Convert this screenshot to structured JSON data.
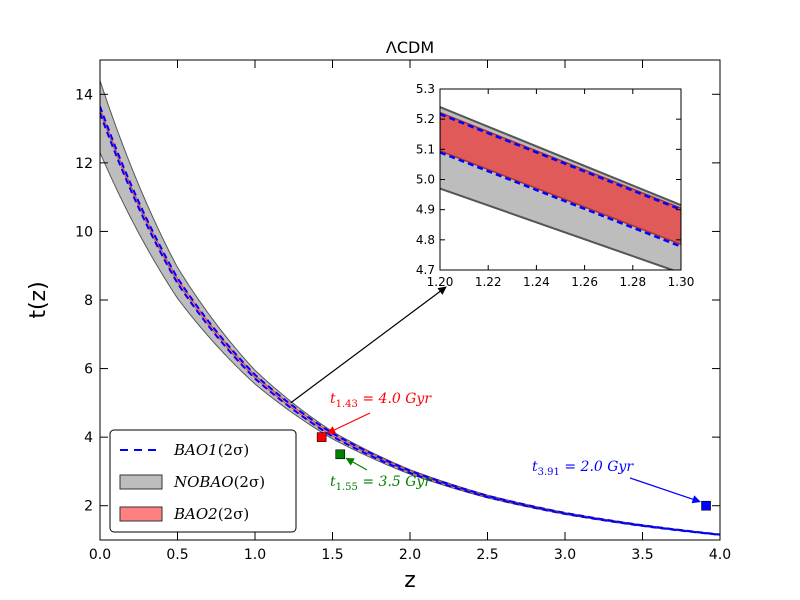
{
  "chart_data": {
    "type": "line",
    "title": "ΛCDM",
    "xlabel": "z",
    "ylabel": "t(z)",
    "xlim": [
      0,
      4
    ],
    "ylim": [
      1,
      15
    ],
    "xticks": [
      "0.0",
      "0.5",
      "1.0",
      "1.5",
      "2.0",
      "2.5",
      "3.0",
      "3.5",
      "4.0"
    ],
    "yticks": [
      "2",
      "4",
      "6",
      "8",
      "10",
      "12",
      "14"
    ],
    "series": [
      {
        "name": "BAO1(2σ)",
        "style": "dashed",
        "color": "#0000ff",
        "upper": [
          [
            0,
            13.65
          ],
          [
            0.5,
            8.64
          ],
          [
            1.0,
            5.82
          ],
          [
            1.5,
            4.11
          ],
          [
            2.0,
            3.02
          ],
          [
            2.5,
            2.29
          ],
          [
            3.0,
            1.79
          ],
          [
            3.5,
            1.43
          ],
          [
            4.0,
            1.16
          ]
        ],
        "lower": [
          [
            0,
            13.45
          ],
          [
            0.5,
            8.49
          ],
          [
            1.0,
            5.71
          ],
          [
            1.5,
            4.02
          ],
          [
            2.0,
            2.96
          ],
          [
            2.5,
            2.25
          ],
          [
            3.0,
            1.76
          ],
          [
            3.5,
            1.41
          ],
          [
            4.0,
            1.15
          ]
        ]
      },
      {
        "name": "NOBAO(2σ)",
        "style": "band",
        "color": "#bdbdbd",
        "upper": [
          [
            0,
            14.4
          ],
          [
            0.5,
            8.95
          ],
          [
            1.0,
            5.95
          ],
          [
            1.5,
            4.16
          ],
          [
            2.0,
            3.05
          ],
          [
            2.5,
            2.31
          ],
          [
            3.0,
            1.8
          ],
          [
            3.5,
            1.44
          ],
          [
            4.0,
            1.17
          ]
        ],
        "lower": [
          [
            0,
            12.3
          ],
          [
            0.5,
            8.05
          ],
          [
            1.0,
            5.55
          ],
          [
            1.5,
            3.95
          ],
          [
            2.0,
            2.92
          ],
          [
            2.5,
            2.23
          ],
          [
            3.0,
            1.75
          ],
          [
            3.5,
            1.4
          ],
          [
            4.0,
            1.14
          ]
        ]
      },
      {
        "name": "BAO2(2σ)",
        "style": "band",
        "color": "#ff8080",
        "upper": [
          [
            0,
            13.6
          ],
          [
            0.5,
            8.62
          ],
          [
            1.0,
            5.81
          ],
          [
            1.5,
            4.1
          ],
          [
            2.0,
            3.02
          ],
          [
            2.5,
            2.29
          ],
          [
            3.0,
            1.79
          ],
          [
            3.5,
            1.43
          ],
          [
            4.0,
            1.16
          ]
        ],
        "lower": [
          [
            0,
            13.5
          ],
          [
            0.5,
            8.52
          ],
          [
            1.0,
            5.73
          ],
          [
            1.5,
            4.03
          ],
          [
            2.0,
            2.97
          ],
          [
            2.5,
            2.26
          ],
          [
            3.0,
            1.77
          ],
          [
            3.5,
            1.41
          ],
          [
            4.0,
            1.15
          ]
        ]
      }
    ],
    "points": [
      {
        "x": 1.43,
        "y": 4.0,
        "color": "#ff0000",
        "label": "t",
        "sub": "1.43",
        "value": " = 4.0 Gyr"
      },
      {
        "x": 1.55,
        "y": 3.5,
        "color": "#008000",
        "label": "t",
        "sub": "1.55",
        "value": " = 3.5 Gyr"
      },
      {
        "x": 3.91,
        "y": 2.0,
        "color": "#0000ff",
        "label": "t",
        "sub": "3.91",
        "value": " = 2.0 Gyr"
      }
    ],
    "inset": {
      "xlim": [
        1.2,
        1.3
      ],
      "ylim": [
        4.7,
        5.3
      ],
      "xticks": [
        "1.20",
        "1.22",
        "1.24",
        "1.26",
        "1.28",
        "1.30"
      ],
      "yticks": [
        "4.7",
        "4.8",
        "4.9",
        "5.0",
        "5.1",
        "5.2",
        "5.3"
      ],
      "nobao": {
        "upper": [
          [
            1.2,
            5.24
          ],
          [
            1.3,
            4.915
          ]
        ],
        "lower": [
          [
            1.2,
            4.97
          ],
          [
            1.3,
            4.69
          ]
        ]
      },
      "bao2": {
        "upper": [
          [
            1.2,
            5.222
          ],
          [
            1.3,
            4.905
          ]
        ],
        "lower": [
          [
            1.2,
            5.095
          ],
          [
            1.3,
            4.785
          ]
        ]
      },
      "bao1": {
        "upper": [
          [
            1.2,
            5.217
          ],
          [
            1.3,
            4.9
          ]
        ],
        "lower": [
          [
            1.2,
            5.09
          ],
          [
            1.3,
            4.778
          ]
        ]
      }
    },
    "legend": {
      "placement": "lower-left",
      "entries": [
        {
          "label": "BAO1",
          "suffix": "(2σ)",
          "kind": "dashed",
          "color": "#0000ff"
        },
        {
          "label": "NOBAO",
          "suffix": "(2σ)",
          "kind": "patch",
          "color": "#bdbdbd"
        },
        {
          "label": "BAO2",
          "suffix": "(2σ)",
          "kind": "patch",
          "color": "#ff8080"
        }
      ]
    }
  }
}
